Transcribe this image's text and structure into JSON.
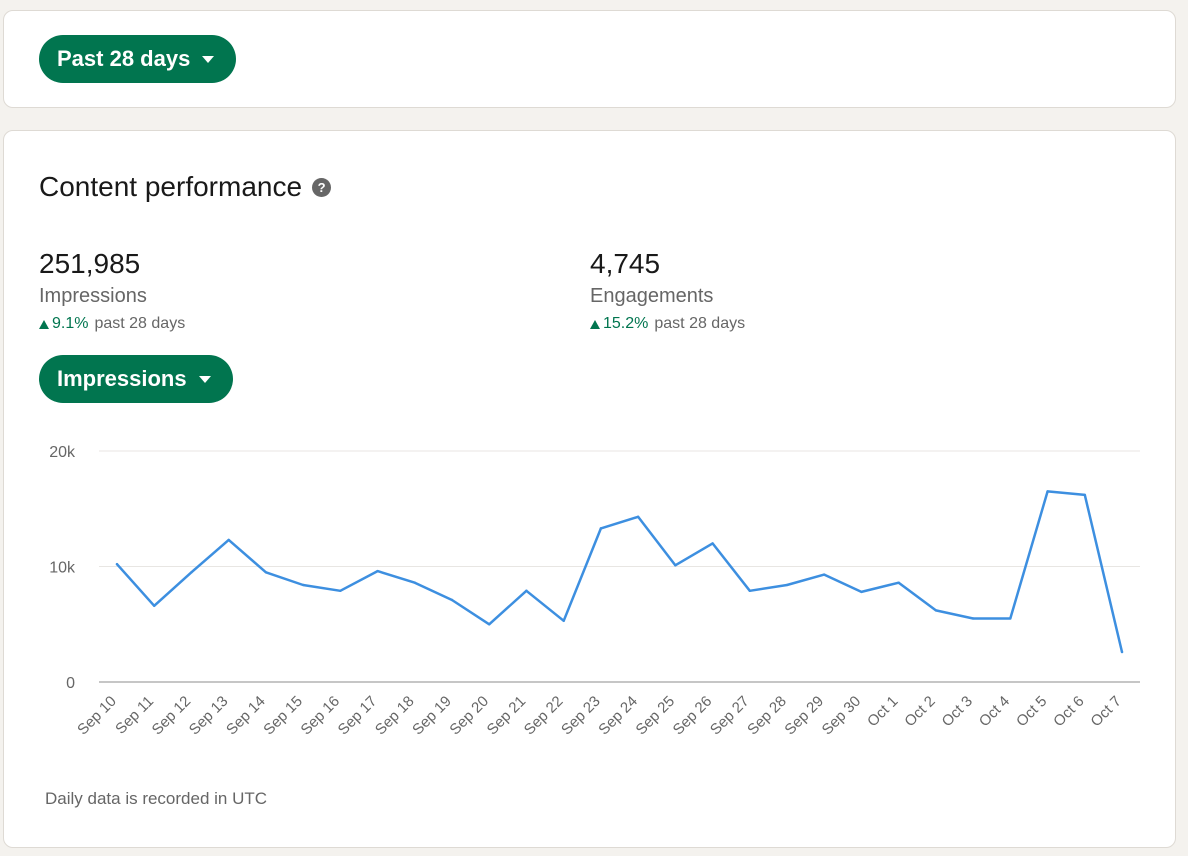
{
  "filters": {
    "period_label": "Past 28 days",
    "metric_label": "Impressions"
  },
  "content_performance": {
    "title": "Content performance",
    "help_icon": "question-circle-icon",
    "stats": [
      {
        "value": "251,985",
        "label": "Impressions",
        "change": "9.1%",
        "change_suffix": "past 28 days"
      },
      {
        "value": "4,745",
        "label": "Engagements",
        "change": "15.2%",
        "change_suffix": "past 28 days"
      }
    ],
    "footnote": "Daily data is recorded in UTC"
  },
  "colors": {
    "brand_green": "#01754f",
    "line_blue": "#3d8fe0",
    "grid": "#e8e6e3"
  },
  "chart_data": {
    "type": "line",
    "categories": [
      "Sep 10",
      "Sep 11",
      "Sep 12",
      "Sep 13",
      "Sep 14",
      "Sep 15",
      "Sep 16",
      "Sep 17",
      "Sep 18",
      "Sep 19",
      "Sep 20",
      "Sep 21",
      "Sep 22",
      "Sep 23",
      "Sep 24",
      "Sep 25",
      "Sep 26",
      "Sep 27",
      "Sep 28",
      "Sep 29",
      "Sep 30",
      "Oct 1",
      "Oct 2",
      "Oct 3",
      "Oct 4",
      "Oct 5",
      "Oct 6",
      "Oct 7"
    ],
    "series": [
      {
        "values": [
          10200,
          6600,
          9500,
          12300,
          9500,
          8400,
          7900,
          9600,
          8600,
          7100,
          5000,
          7900,
          5300,
          13300,
          14300,
          10100,
          12000,
          7900,
          8400,
          9300,
          7800,
          8600,
          6200,
          5500,
          5500,
          16500,
          16200,
          2600
        ]
      }
    ],
    "yticks": [
      "0",
      "10k",
      "20k"
    ],
    "ylim": [
      0,
      20000
    ],
    "grid": true,
    "xlabel": "",
    "ylabel": ""
  }
}
